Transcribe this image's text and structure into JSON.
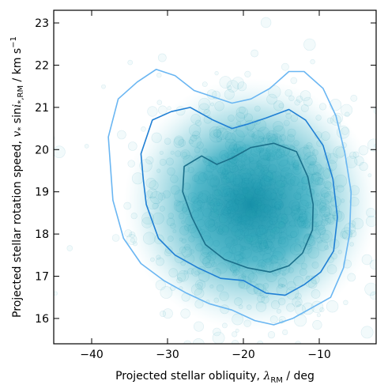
{
  "chart_data": {
    "type": "scatter",
    "subtype": "posterior-sample-cloud-with-density-contours",
    "xlabel": {
      "prefix": "Projected stellar obliquity, ",
      "symbol": "λ",
      "subscript": "RM",
      "suffix": " / deg"
    },
    "ylabel": {
      "prefix": "Projected stellar rotation speed, ",
      "symbol": "v",
      "symbol_sub": "*",
      "middle": " sin",
      "symbol2": "i",
      "symbol2_sub": "*,RM",
      "suffix": " / km s",
      "suffix_sup": "−1"
    },
    "xlim": [
      -45,
      -2.5
    ],
    "ylim": [
      15.4,
      23.3
    ],
    "xticks": [
      -40,
      -30,
      -20,
      -10
    ],
    "yticks": [
      16,
      17,
      18,
      19,
      20,
      21,
      22,
      23
    ],
    "xtick_labels": [
      "−40",
      "−30",
      "−20",
      "−10"
    ],
    "ytick_labels": [
      "16",
      "17",
      "18",
      "19",
      "20",
      "21",
      "22",
      "23"
    ],
    "distribution": {
      "center": [
        -19.0,
        18.7
      ],
      "core_halfwidth_deg": 8,
      "core_halfheight_kms": 1.3
    },
    "contours": [
      {
        "level": "inner",
        "color": "#1a6f8a",
        "points": [
          [
            -27.8,
            19.6
          ],
          [
            -25.5,
            19.85
          ],
          [
            -23.5,
            19.65
          ],
          [
            -21.5,
            19.8
          ],
          [
            -19.0,
            20.05
          ],
          [
            -16.0,
            20.15
          ],
          [
            -13.0,
            19.95
          ],
          [
            -11.5,
            19.35
          ],
          [
            -10.8,
            18.7
          ],
          [
            -10.9,
            18.1
          ],
          [
            -12.2,
            17.55
          ],
          [
            -14.0,
            17.25
          ],
          [
            -16.5,
            17.1
          ],
          [
            -19.5,
            17.2
          ],
          [
            -22.5,
            17.4
          ],
          [
            -25.0,
            17.75
          ],
          [
            -26.8,
            18.4
          ],
          [
            -28.0,
            19.0
          ]
        ]
      },
      {
        "level": "middle",
        "color": "#1f7fd4",
        "points": [
          [
            -33.5,
            19.9
          ],
          [
            -32.0,
            20.7
          ],
          [
            -29.5,
            20.9
          ],
          [
            -27.0,
            21.0
          ],
          [
            -24.0,
            20.7
          ],
          [
            -21.5,
            20.5
          ],
          [
            -19.5,
            20.6
          ],
          [
            -17.0,
            20.75
          ],
          [
            -14.0,
            20.95
          ],
          [
            -11.8,
            20.7
          ],
          [
            -9.5,
            20.1
          ],
          [
            -8.2,
            19.3
          ],
          [
            -7.6,
            18.4
          ],
          [
            -8.1,
            17.6
          ],
          [
            -9.8,
            17.1
          ],
          [
            -12.0,
            16.8
          ],
          [
            -14.5,
            16.55
          ],
          [
            -17.0,
            16.6
          ],
          [
            -20.0,
            16.9
          ],
          [
            -23.0,
            16.95
          ],
          [
            -26.0,
            17.2
          ],
          [
            -29.0,
            17.5
          ],
          [
            -31.2,
            17.9
          ],
          [
            -32.8,
            18.7
          ],
          [
            -33.2,
            19.3
          ]
        ]
      },
      {
        "level": "outer",
        "color": "#6ab6f2",
        "points": [
          [
            -37.8,
            20.3
          ],
          [
            -36.5,
            21.2
          ],
          [
            -34.0,
            21.6
          ],
          [
            -31.5,
            21.9
          ],
          [
            -29.0,
            21.75
          ],
          [
            -26.5,
            21.4
          ],
          [
            -24.0,
            21.25
          ],
          [
            -21.5,
            21.1
          ],
          [
            -19.0,
            21.2
          ],
          [
            -16.5,
            21.45
          ],
          [
            -14.0,
            21.85
          ],
          [
            -12.0,
            21.85
          ],
          [
            -9.5,
            21.45
          ],
          [
            -7.8,
            20.8
          ],
          [
            -6.6,
            19.9
          ],
          [
            -5.8,
            19.0
          ],
          [
            -6.0,
            18.0
          ],
          [
            -6.8,
            17.2
          ],
          [
            -8.5,
            16.5
          ],
          [
            -11.0,
            16.25
          ],
          [
            -13.5,
            16.0
          ],
          [
            -16.0,
            15.85
          ],
          [
            -18.5,
            15.95
          ],
          [
            -21.5,
            16.2
          ],
          [
            -24.5,
            16.35
          ],
          [
            -27.5,
            16.6
          ],
          [
            -30.5,
            16.9
          ],
          [
            -33.5,
            17.3
          ],
          [
            -35.8,
            17.9
          ],
          [
            -37.2,
            18.8
          ]
        ]
      }
    ]
  }
}
